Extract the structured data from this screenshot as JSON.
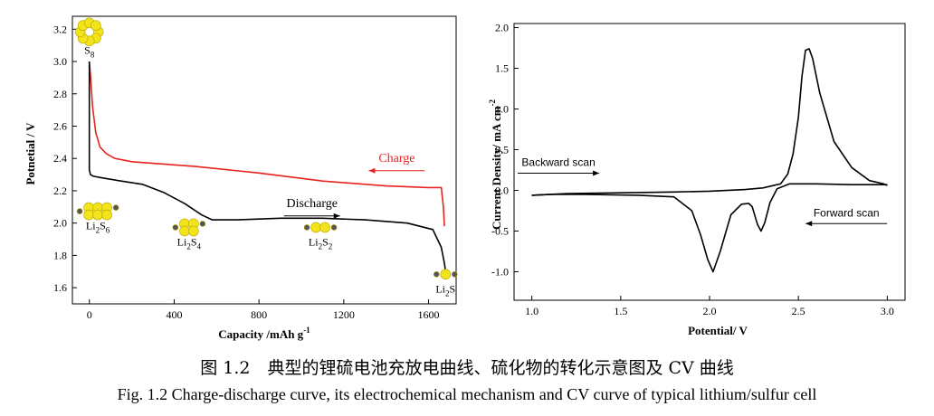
{
  "chart_data": [
    {
      "type": "line",
      "title": "",
      "xlabel": "Capacity /mAh g",
      "xlabel_sup": "-1",
      "ylabel": "Potnetial / V",
      "xlim": [
        -80,
        1730
      ],
      "ylim": [
        1.5,
        3.28
      ],
      "xticks": [
        0,
        400,
        800,
        1200,
        1600
      ],
      "xtick_labels": [
        "0",
        "400",
        "800",
        "1200",
        "1600"
      ],
      "yticks": [
        1.6,
        1.8,
        2.0,
        2.2,
        2.4,
        2.6,
        2.8,
        3.0,
        3.2
      ],
      "ytick_labels": [
        "1.6",
        "1.8",
        "2.0",
        "2.2",
        "2.4",
        "2.6",
        "2.8",
        "3.0",
        "3.2"
      ],
      "series": [
        {
          "name": "Charge",
          "color": "#e8231f",
          "x": [
            0,
            5,
            15,
            30,
            50,
            80,
            120,
            200,
            300,
            500,
            800,
            1100,
            1400,
            1600,
            1660,
            1670,
            1675
          ],
          "y": [
            3.0,
            2.92,
            2.72,
            2.56,
            2.47,
            2.43,
            2.4,
            2.38,
            2.37,
            2.35,
            2.31,
            2.26,
            2.23,
            2.22,
            2.22,
            2.1,
            1.98
          ]
        },
        {
          "name": "Discharge",
          "color": "#000000",
          "x": [
            0,
            0,
            5,
            20,
            60,
            150,
            250,
            350,
            450,
            530,
            580,
            700,
            900,
            1100,
            1300,
            1500,
            1620,
            1660,
            1675,
            1680
          ],
          "y": [
            3.0,
            2.33,
            2.3,
            2.29,
            2.28,
            2.26,
            2.24,
            2.19,
            2.12,
            2.05,
            2.02,
            2.02,
            2.03,
            2.03,
            2.02,
            2.0,
            1.96,
            1.85,
            1.75,
            1.7
          ]
        }
      ],
      "annotations": [
        {
          "text": "Charge",
          "color": "#e8231f",
          "arrow": "left",
          "x": 1450,
          "y": 2.38
        },
        {
          "text": "Discharge",
          "color": "#000000",
          "arrow": "right",
          "x": 1050,
          "y": 2.1
        }
      ],
      "species": [
        {
          "base": "S",
          "sub": "8",
          "x": 0,
          "y": 3.06
        },
        {
          "base": "Li",
          "sub": "2",
          "base2": "S",
          "sub2": "6",
          "x": 40,
          "y": 1.95
        },
        {
          "base": "Li",
          "sub": "2",
          "base2": "S",
          "sub2": "4",
          "x": 470,
          "y": 1.85
        },
        {
          "base": "Li",
          "sub": "2",
          "base2": "S",
          "sub2": "2",
          "x": 1090,
          "y": 1.85
        },
        {
          "base": "Li",
          "sub": "2",
          "base2": "S",
          "sub2": "",
          "x": 1680,
          "y": 1.56
        }
      ]
    },
    {
      "type": "line",
      "title": "",
      "xlabel": "Potential/ V",
      "ylabel": "Current Density/ mA cm",
      "ylabel_sup": "-2",
      "xlim": [
        0.9,
        3.1
      ],
      "ylim": [
        -1.35,
        2.05
      ],
      "xticks": [
        1.0,
        1.5,
        2.0,
        2.5,
        3.0
      ],
      "xtick_labels": [
        "1.0",
        "1.5",
        "2.0",
        "2.5",
        "3.0"
      ],
      "yticks": [
        -1.0,
        -0.5,
        0.0,
        0.5,
        1.0,
        1.5,
        2.0
      ],
      "ytick_labels": [
        "-1.0",
        "-0.5",
        "0.0",
        "0.5",
        "1.0",
        "1.5",
        "2.0"
      ],
      "series": [
        {
          "name": "Forward scan",
          "color": "#000000",
          "x": [
            1.0,
            1.1,
            1.3,
            1.6,
            1.8,
            1.9,
            1.95,
            1.99,
            2.02,
            2.06,
            2.12,
            2.18,
            2.22,
            2.24,
            2.27,
            2.29,
            2.31,
            2.34,
            2.38,
            2.45,
            2.6,
            2.8,
            3.0
          ],
          "y": [
            -0.06,
            -0.05,
            -0.05,
            -0.06,
            -0.08,
            -0.25,
            -0.55,
            -0.85,
            -1.0,
            -0.75,
            -0.3,
            -0.17,
            -0.16,
            -0.2,
            -0.42,
            -0.5,
            -0.4,
            -0.15,
            0.02,
            0.08,
            0.08,
            0.07,
            0.07
          ]
        },
        {
          "name": "Backward scan",
          "color": "#000000",
          "x": [
            3.0,
            2.98,
            2.9,
            2.8,
            2.7,
            2.62,
            2.58,
            2.56,
            2.54,
            2.52,
            2.5,
            2.47,
            2.44,
            2.4,
            2.3,
            2.2,
            2.0,
            1.8,
            1.5,
            1.2,
            1.0
          ],
          "y": [
            0.06,
            0.08,
            0.12,
            0.28,
            0.6,
            1.2,
            1.62,
            1.74,
            1.72,
            1.4,
            0.9,
            0.45,
            0.2,
            0.08,
            0.03,
            0.01,
            -0.01,
            -0.02,
            -0.03,
            -0.04,
            -0.06
          ]
        }
      ],
      "annotations": [
        {
          "text": "Backward scan",
          "arrow": "right",
          "x": 1.15,
          "y": 0.3
        },
        {
          "text": "Forward scan",
          "arrow": "left",
          "x": 2.77,
          "y": -0.32
        }
      ]
    }
  ],
  "caption": {
    "cn": "图 1.2　典型的锂硫电池充放电曲线、硫化物的转化示意图及 CV 曲线",
    "en": "Fig. 1.2    Charge-discharge curve, its electrochemical mechanism and CV curve of typical lithium/sulfur cell"
  },
  "colors": {
    "charge": "#e8231f",
    "discharge": "#000000",
    "sulfur": "#f2e31a",
    "lithium": "#555555"
  }
}
